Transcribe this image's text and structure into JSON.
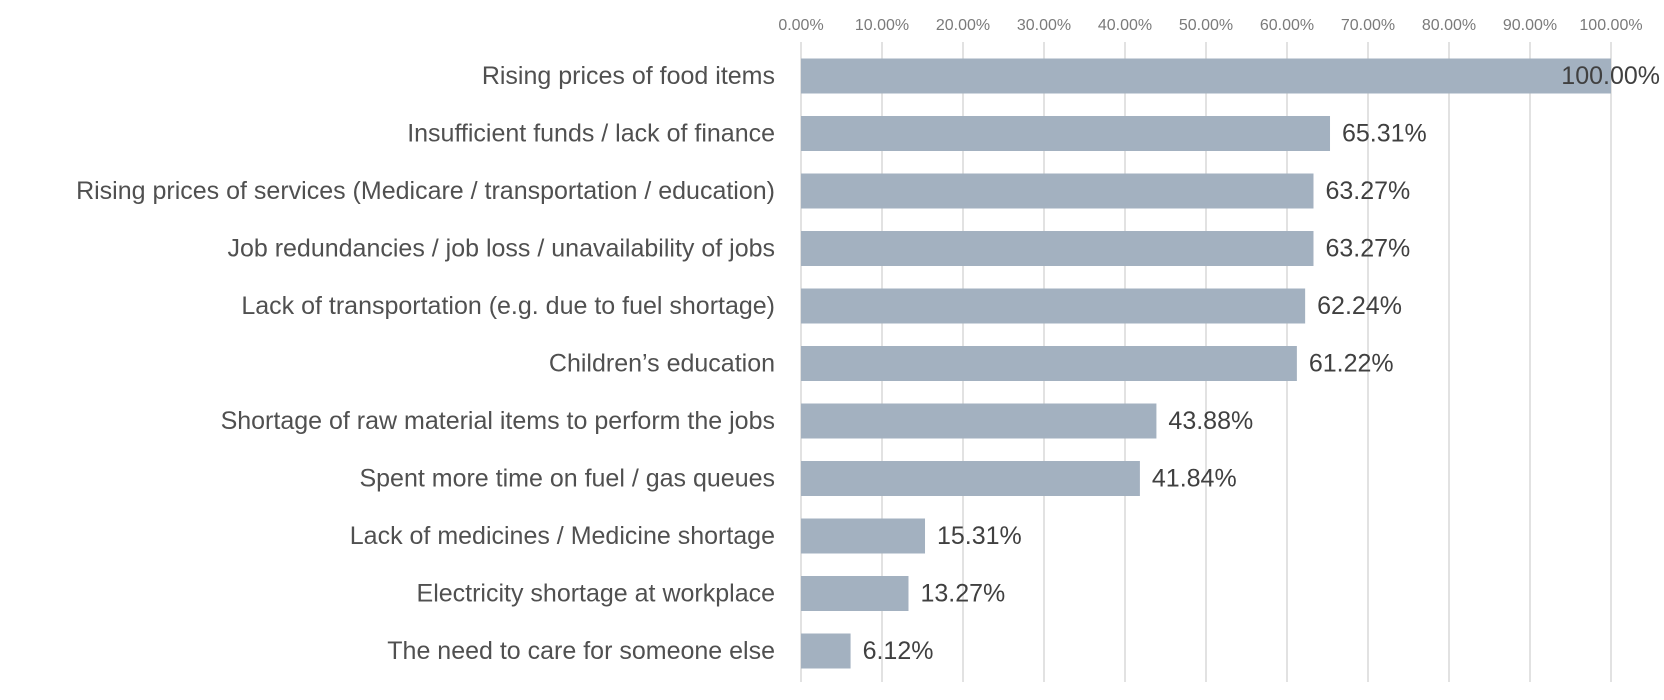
{
  "chart_data": {
    "type": "bar",
    "orientation": "horizontal",
    "title": "",
    "xlabel": "",
    "ylabel": "",
    "xlim": [
      0,
      100
    ],
    "x_ticks": [
      0,
      10,
      20,
      30,
      40,
      50,
      60,
      70,
      80,
      90,
      100
    ],
    "x_tick_labels": [
      "0.00%",
      "10.00%",
      "20.00%",
      "30.00%",
      "40.00%",
      "50.00%",
      "60.00%",
      "70.00%",
      "80.00%",
      "90.00%",
      "100.00%"
    ],
    "x_axis_position": "top",
    "grid": true,
    "legend": "none",
    "categories": [
      "Rising prices of food items",
      "Insufficient funds / lack of finance",
      "Rising prices of services (Medicare / transportation / education)",
      "Job redundancies / job loss / unavailability of jobs",
      "Lack of transportation (e.g. due to fuel shortage)",
      "Children’s education",
      "Shortage of raw material items to perform the jobs",
      "Spent more time on fuel / gas queues",
      "Lack of medicines / Medicine shortage",
      "Electricity shortage at workplace",
      "The need to care for someone else"
    ],
    "values": [
      100.0,
      65.31,
      63.27,
      63.27,
      62.24,
      61.22,
      43.88,
      41.84,
      15.31,
      13.27,
      6.12
    ],
    "value_labels": [
      "100.00%",
      "65.31%",
      "63.27%",
      "63.27%",
      "62.24%",
      "61.22%",
      "43.88%",
      "41.84%",
      "15.31%",
      "13.27%",
      "6.12%"
    ],
    "colors": {
      "bar": "#a3b1c0",
      "grid": "#d9d9d9"
    }
  }
}
